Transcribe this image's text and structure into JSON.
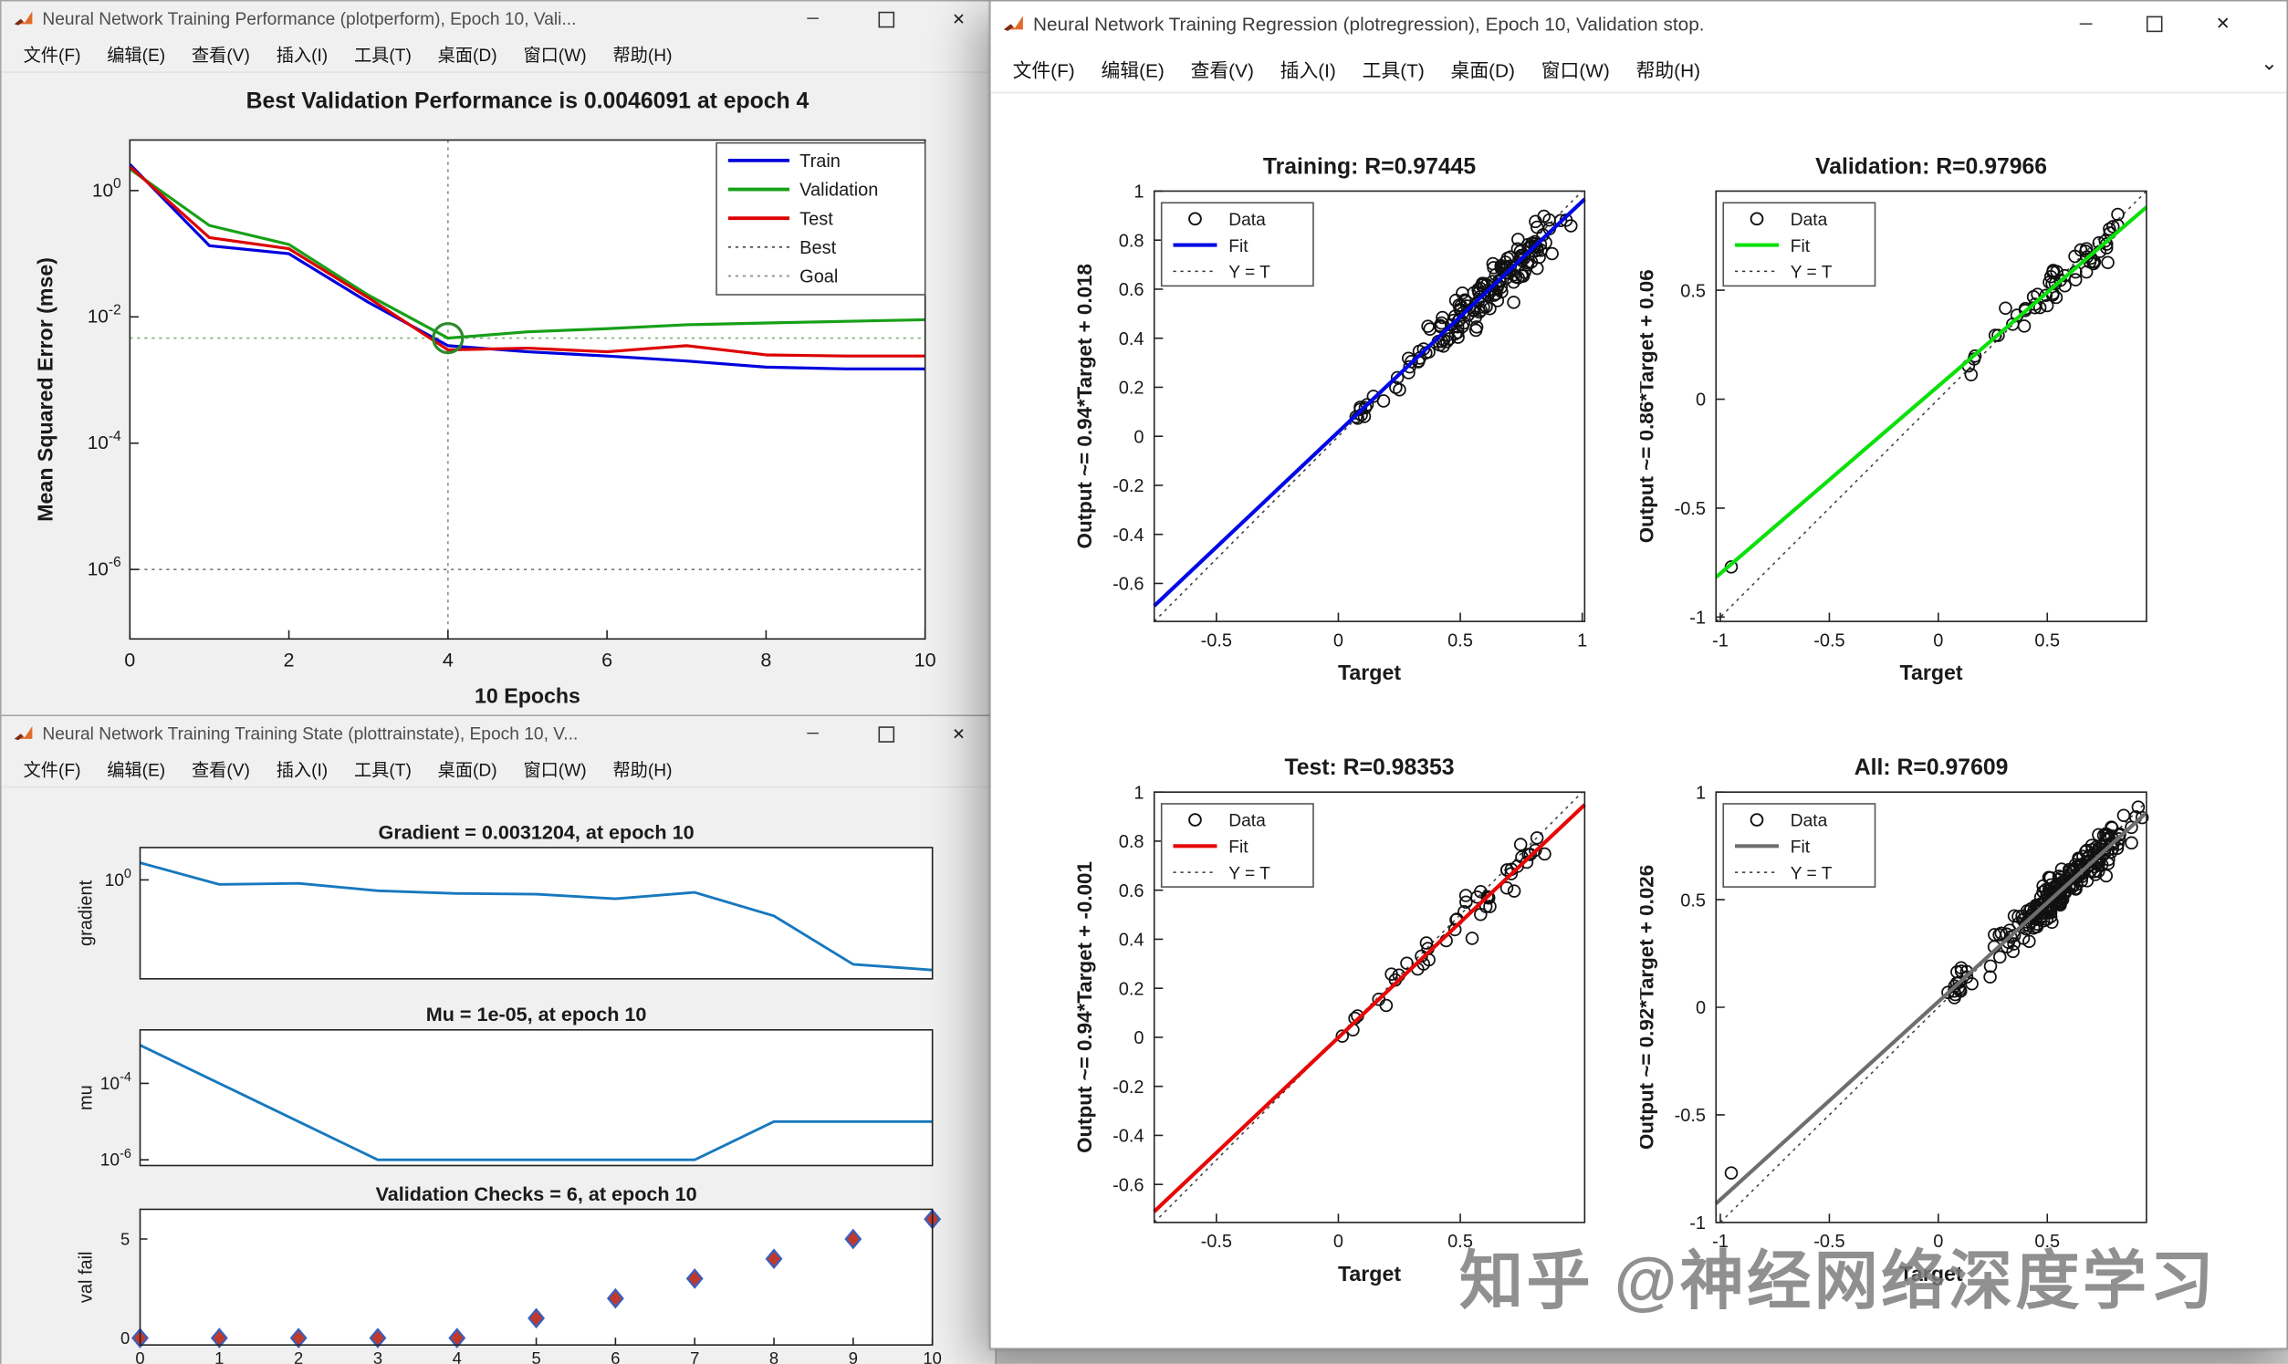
{
  "watermark": "知乎 @神经网络深度学习",
  "menu_items": [
    "文件(F)",
    "编辑(E)",
    "查看(V)",
    "插入(I)",
    "工具(T)",
    "桌面(D)",
    "窗口(W)",
    "帮助(H)"
  ],
  "glyphs": {
    "minimize": "─",
    "close": "✕",
    "menubar_caret": "⌄"
  },
  "colors": {
    "figure_bg": "#f0f0f0",
    "active_window_bg": "#ffffff",
    "train": "#0000dd",
    "validation": "#18a018",
    "test": "#dd0000",
    "state_line": "#1778be",
    "fit_all": "#6e6e6e"
  },
  "windows": {
    "performance": {
      "title": "Neural Network Training Performance (plotperform), Epoch 10, Vali..."
    },
    "trainstate": {
      "title": "Neural Network Training Training State (plottrainstate), Epoch 10, V..."
    },
    "regression": {
      "title": "Neural Network Training Regression (plotregression), Epoch 10, Validation stop."
    }
  },
  "chart_data": [
    {
      "id": "performance",
      "type": "line",
      "yscale": "log",
      "title": "Best Validation Performance is 0.0046091 at epoch 4",
      "xlabel": "10 Epochs",
      "ylabel": "Mean Squared Error  (mse)",
      "xlim": [
        0,
        10
      ],
      "xticks": [
        0,
        2,
        4,
        6,
        8,
        10
      ],
      "ylim_exp": [
        -7.1,
        0.8
      ],
      "ytick_exps": [
        0,
        -2,
        -4,
        -6
      ],
      "x": [
        0,
        1,
        2,
        3,
        4,
        5,
        6,
        7,
        8,
        9,
        10
      ],
      "series": [
        {
          "name": "Train",
          "color": "#0000dd",
          "values": [
            2.6,
            0.134,
            0.1,
            0.017,
            0.0035,
            0.0028,
            0.0024,
            0.002,
            0.0016,
            0.0015,
            0.0015
          ]
        },
        {
          "name": "Validation",
          "color": "#18a018",
          "values": [
            2.2,
            0.28,
            0.14,
            0.022,
            0.0046091,
            0.0058,
            0.0065,
            0.0075,
            0.008,
            0.0085,
            0.009
          ]
        },
        {
          "name": "Test",
          "color": "#dd0000",
          "values": [
            2.4,
            0.18,
            0.12,
            0.02,
            0.003,
            0.0032,
            0.0028,
            0.0035,
            0.0025,
            0.0024,
            0.0024
          ]
        }
      ],
      "best": {
        "epoch": 4,
        "value": 0.0046091,
        "circle_color": "#2e8b2e"
      },
      "goal": 1e-06,
      "legend": [
        {
          "label": "Train",
          "style": "solid",
          "color": "#0000dd"
        },
        {
          "label": "Validation",
          "style": "solid",
          "color": "#18a018"
        },
        {
          "label": "Test",
          "style": "solid",
          "color": "#dd0000"
        },
        {
          "label": "Best",
          "style": "dotted",
          "color": "#555555"
        },
        {
          "label": "Goal",
          "style": "dotted",
          "color": "#999999"
        }
      ]
    },
    {
      "id": "gradient",
      "type": "line",
      "yscale": "log",
      "title": "Gradient = 0.0031204, at epoch 10",
      "ylabel": "gradient",
      "xlim": [
        0,
        10
      ],
      "ylim_exp": [
        -2.75,
        0.9
      ],
      "ytick_exps": [
        0
      ],
      "x": [
        0,
        1,
        2,
        3,
        4,
        5,
        6,
        7,
        8,
        9,
        10
      ],
      "series": [
        {
          "name": "gradient",
          "color": "#1778be",
          "values": [
            3,
            0.75,
            0.8,
            0.5,
            0.42,
            0.4,
            0.3,
            0.45,
            0.1,
            0.0045,
            0.0031204
          ]
        }
      ]
    },
    {
      "id": "mu",
      "type": "line",
      "yscale": "log",
      "title": "Mu = 1e-05, at epoch 10",
      "ylabel": "mu",
      "xlim": [
        0,
        10
      ],
      "ylim_exp": [
        -6.15,
        -2.6
      ],
      "ytick_exps": [
        -4,
        -6
      ],
      "x": [
        0,
        1,
        2,
        3,
        4,
        5,
        6,
        7,
        8,
        9,
        10
      ],
      "series": [
        {
          "name": "mu",
          "color": "#1778be",
          "values": [
            0.001,
            0.0001,
            1e-05,
            1e-06,
            1e-06,
            1e-06,
            1e-06,
            1e-06,
            1e-05,
            1e-05,
            1e-05
          ]
        }
      ]
    },
    {
      "id": "valfail",
      "type": "diamond",
      "title": "Validation Checks = 6, at epoch 10",
      "ylabel": "val fail",
      "xlim": [
        0,
        10
      ],
      "ylim": [
        -0.35,
        6.5
      ],
      "yticks": [
        0,
        5
      ],
      "xticks": [
        0,
        1,
        2,
        3,
        4,
        5,
        6,
        7,
        8,
        9,
        10
      ],
      "x": [
        0,
        1,
        2,
        3,
        4,
        5,
        6,
        7,
        8,
        9,
        10
      ],
      "values": [
        0,
        0,
        0,
        0,
        0,
        1,
        2,
        3,
        4,
        5,
        6
      ],
      "marker": {
        "fill": "#c0392b",
        "stroke": "#3a5fbf"
      }
    },
    {
      "id": "reg_training",
      "type": "regression",
      "title": "Training: R=0.97445",
      "xlabel": "Target",
      "ylabel": "Output ~= 0.94*Target + 0.018",
      "fit": {
        "slope": 0.94,
        "intercept": 0.018,
        "color": "#0008e6"
      },
      "xlim": [
        -0.755,
        1.01
      ],
      "ylim": [
        -0.755,
        1.0
      ],
      "xticks": [
        -0.5,
        0,
        0.5,
        1
      ],
      "yticks": [
        -0.6,
        -0.4,
        -0.2,
        0,
        0.2,
        0.4,
        0.6,
        0.8,
        1
      ],
      "legend": [
        {
          "label": "Data",
          "style": "marker",
          "color": "#111111"
        },
        {
          "label": "Fit",
          "style": "solid",
          "color": "#0008e6"
        },
        {
          "label": "Y = T",
          "style": "dotted",
          "color": "#333333"
        }
      ],
      "points": {
        "seed": 42,
        "noise": 0.045,
        "clusters": [
          {
            "x0": 0.2,
            "x1": 1.0,
            "n": 150
          },
          {
            "x0": -0.02,
            "x1": 0.2,
            "n": 10
          }
        ],
        "outliers": []
      }
    },
    {
      "id": "reg_validation",
      "type": "regression",
      "title": "Validation: R=0.97966",
      "xlabel": "Target",
      "ylabel": "Output ~= 0.86*Target + 0.06",
      "fit": {
        "slope": 0.86,
        "intercept": 0.06,
        "color": "#0be00b"
      },
      "xlim": [
        -1.02,
        0.955
      ],
      "ylim": [
        -1.02,
        0.955
      ],
      "xticks": [
        -1,
        -0.5,
        0,
        0.5
      ],
      "yticks": [
        -1,
        -0.5,
        0,
        0.5
      ],
      "legend": [
        {
          "label": "Data",
          "style": "marker",
          "color": "#111111"
        },
        {
          "label": "Fit",
          "style": "solid",
          "color": "#0be00b"
        },
        {
          "label": "Y = T",
          "style": "dotted",
          "color": "#333333"
        }
      ],
      "points": {
        "seed": 7,
        "noise": 0.05,
        "clusters": [
          {
            "x0": 0.25,
            "x1": 0.92,
            "n": 52
          },
          {
            "x0": 0.0,
            "x1": 0.25,
            "n": 4
          }
        ],
        "outliers": [
          [
            -0.95,
            -0.77
          ]
        ]
      }
    },
    {
      "id": "reg_test",
      "type": "regression",
      "title": "Test: R=0.98353",
      "xlabel": "Target",
      "ylabel": "Output ~= 0.94*Target + -0.001",
      "fit": {
        "slope": 0.94,
        "intercept": -0.001,
        "color": "#e60808"
      },
      "xlim": [
        -0.755,
        1.01
      ],
      "ylim": [
        -0.755,
        1.0
      ],
      "xticks": [
        -0.5,
        0,
        0.5
      ],
      "yticks": [
        -0.6,
        -0.4,
        -0.2,
        0,
        0.2,
        0.4,
        0.6,
        0.8,
        1
      ],
      "legend": [
        {
          "label": "Data",
          "style": "marker",
          "color": "#111111"
        },
        {
          "label": "Fit",
          "style": "solid",
          "color": "#e60808"
        },
        {
          "label": "Y = T",
          "style": "dotted",
          "color": "#333333"
        }
      ],
      "points": {
        "seed": 13,
        "noise": 0.04,
        "clusters": [
          {
            "x0": 0.18,
            "x1": 0.92,
            "n": 42
          },
          {
            "x0": 0.0,
            "x1": 0.18,
            "n": 5
          }
        ],
        "outliers": []
      }
    },
    {
      "id": "reg_all",
      "type": "regression",
      "title": "All: R=0.97609",
      "xlabel": "Target",
      "ylabel": "Output ~= 0.92*Target + 0.026",
      "fit": {
        "slope": 0.92,
        "intercept": 0.026,
        "color": "#6e6e6e"
      },
      "xlim": [
        -1.02,
        0.955
      ],
      "ylim": [
        -1.0,
        1.0
      ],
      "xticks": [
        -1,
        -0.5,
        0,
        0.5
      ],
      "yticks": [
        -1,
        -0.5,
        0,
        0.5,
        1
      ],
      "legend": [
        {
          "label": "Data",
          "style": "marker",
          "color": "#111111"
        },
        {
          "label": "Fit",
          "style": "solid",
          "color": "#6e6e6e"
        },
        {
          "label": "Y = T",
          "style": "dotted",
          "color": "#333333"
        }
      ],
      "points": {
        "seed": 99,
        "noise": 0.047,
        "clusters": [
          {
            "x0": 0.2,
            "x1": 0.95,
            "n": 225
          },
          {
            "x0": -0.02,
            "x1": 0.2,
            "n": 16
          }
        ],
        "outliers": [
          [
            -0.95,
            -0.77
          ]
        ]
      }
    }
  ]
}
